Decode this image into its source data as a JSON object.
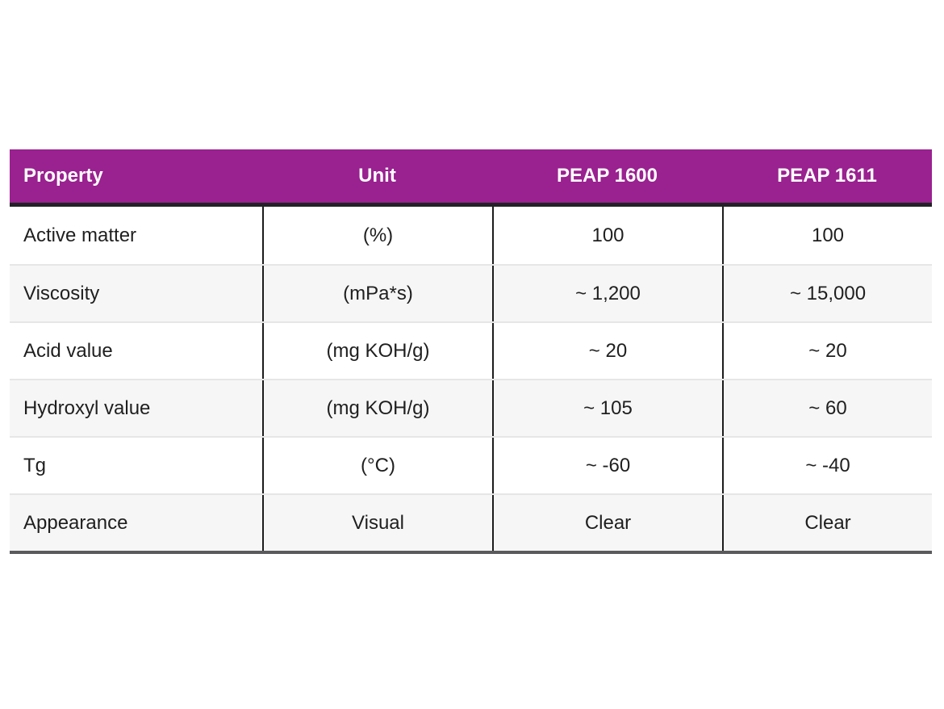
{
  "table": {
    "columns": [
      {
        "label": "Property"
      },
      {
        "label": "Unit"
      },
      {
        "label": "PEAP 1600"
      },
      {
        "label": "PEAP 1611"
      }
    ],
    "rows": [
      {
        "property": "Active matter",
        "unit": "(%)",
        "peap1600": "100",
        "peap1611": "100"
      },
      {
        "property": "Viscosity",
        "unit": "(mPa*s)",
        "peap1600": "~ 1,200",
        "peap1611": "~ 15,000"
      },
      {
        "property": "Acid value",
        "unit": "(mg KOH/g)",
        "peap1600": "~ 20",
        "peap1611": "~ 20"
      },
      {
        "property": "Hydroxyl value",
        "unit": "(mg KOH/g)",
        "peap1600": "~ 105",
        "peap1611": "~ 60"
      },
      {
        "property": "Tg",
        "unit": "(°C)",
        "peap1600": "~ -60",
        "peap1611": "~ -40"
      },
      {
        "property": "Appearance",
        "unit": "Visual",
        "peap1600": "Clear",
        "peap1611": "Clear"
      }
    ],
    "colors": {
      "header_bg": "#9A2190",
      "header_text": "#ffffff",
      "header_underline": "#232327",
      "stripe_bg": "#f6f6f6",
      "row_bg": "#ffffff",
      "column_divider": "#1c1c1c",
      "row_separator": "#e6e6e6",
      "bottom_border": "#5a5a5c",
      "body_text": "#1f1f1f"
    }
  }
}
